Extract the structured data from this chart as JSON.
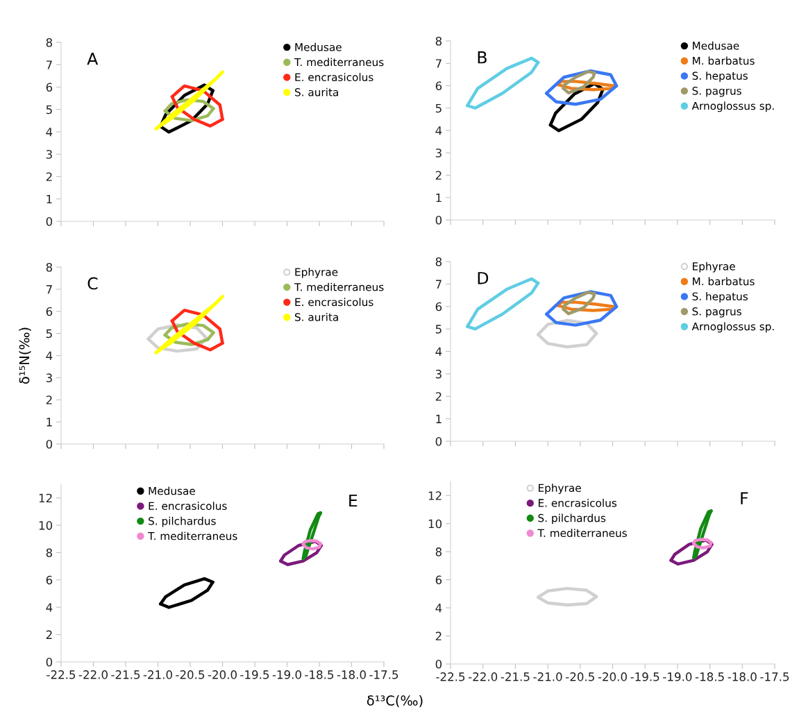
{
  "chart_data": [
    {
      "type": "line",
      "annotations": [
        "A"
      ],
      "legend": "top right",
      "xlim": [
        -22.5,
        -17.5
      ],
      "ylim": [
        0,
        8
      ],
      "tick_labels": "y",
      "xticks": [
        -22.5,
        -22,
        -21.5,
        -21,
        -20.5,
        -20,
        -19.5,
        -19,
        -18.5,
        -18,
        -17.5
      ],
      "yticks": [
        0,
        1,
        2,
        3,
        4,
        5,
        6,
        7,
        8
      ],
      "series": [
        {
          "name": "Medusae",
          "color": "#000000",
          "x": [
            -20.96,
            -20.83,
            -20.48,
            -20.23,
            -20.15
          ],
          "values": [
            4.24,
            3.99,
            4.5,
            5.25,
            5.84
          ]
        },
        {
          "color": "#000000",
          "x": [
            -20.96,
            -20.88,
            -20.59,
            -20.28,
            -20.15
          ],
          "values": [
            4.24,
            4.77,
            5.63,
            6.09,
            5.84
          ]
        },
        {
          "name": "T. mediterraneus",
          "color": "#9bbb59",
          "x": [
            -20.89,
            -20.74,
            -20.48,
            -20.23,
            -20.14
          ],
          "values": [
            4.93,
            4.61,
            4.5,
            4.72,
            5.04
          ]
        },
        {
          "color": "#9bbb59",
          "x": [
            -20.89,
            -20.79,
            -20.55,
            -20.3,
            -20.14
          ],
          "values": [
            4.93,
            5.25,
            5.43,
            5.36,
            5.04
          ]
        },
        {
          "name": "E. encrasicolus",
          "color": "#ff2a1a",
          "x": [
            -20.78,
            -20.7,
            -20.44,
            -20.19,
            -20.0
          ],
          "values": [
            5.57,
            5.09,
            4.56,
            4.26,
            4.56
          ]
        },
        {
          "color": "#ff2a1a",
          "x": [
            -20.78,
            -20.59,
            -20.3,
            -20.04,
            -20.0
          ],
          "values": [
            5.57,
            6.05,
            5.84,
            5.2,
            4.56
          ]
        },
        {
          "name": "S. aurita",
          "color": "#ffff00",
          "x": [
            -21.03,
            -20.81,
            -20.44,
            -20.12,
            -20.0
          ],
          "values": [
            4.13,
            4.56,
            5.41,
            6.32,
            6.67
          ]
        },
        {
          "color": "#ffff00",
          "x": [
            -21.03,
            -20.81,
            -20.44,
            -20.08,
            -20.0
          ],
          "values": [
            4.13,
            4.71,
            5.57,
            6.43,
            6.67
          ]
        }
      ]
    },
    {
      "type": "line",
      "annotations": [
        "B"
      ],
      "legend": "top right",
      "xlim": [
        -22.5,
        -17.5
      ],
      "ylim": [
        0,
        8
      ],
      "tick_labels": "y",
      "xticks": [
        -22.5,
        -22,
        -21.5,
        -21,
        -20.5,
        -20,
        -19.5,
        -19,
        -18.5,
        -18,
        -17.5
      ],
      "yticks": [
        0,
        1,
        2,
        3,
        4,
        5,
        6,
        7,
        8
      ],
      "series": [
        {
          "name": "Medusae",
          "color": "#000000",
          "x": [
            -20.96,
            -20.83,
            -20.48,
            -20.23,
            -20.15
          ],
          "values": [
            4.24,
            3.99,
            4.5,
            5.25,
            5.84
          ]
        },
        {
          "color": "#000000",
          "x": [
            -20.96,
            -20.88,
            -20.59,
            -20.28,
            -20.15
          ],
          "values": [
            4.24,
            4.77,
            5.63,
            6.09,
            5.84
          ]
        },
        {
          "name": "M. barbatus",
          "color": "#ed7d1a",
          "x": [
            -20.85,
            -20.64,
            -20.3,
            -20.0,
            -19.98
          ],
          "values": [
            6.05,
            5.88,
            5.82,
            5.88,
            5.99
          ]
        },
        {
          "color": "#ed7d1a",
          "x": [
            -20.85,
            -20.79,
            -20.57,
            -20.26,
            -19.98
          ],
          "values": [
            6.05,
            6.19,
            6.19,
            6.1,
            5.99
          ]
        },
        {
          "name": "S. hepatus",
          "color": "#3a78f2",
          "x": [
            -21.02,
            -20.87,
            -20.57,
            -20.19,
            -19.94
          ],
          "values": [
            5.66,
            5.28,
            5.17,
            5.39,
            5.99
          ]
        },
        {
          "color": "#3a78f2",
          "x": [
            -21.02,
            -20.75,
            -20.34,
            -20.03,
            -19.94
          ],
          "values": [
            5.66,
            6.38,
            6.66,
            6.49,
            5.99
          ]
        },
        {
          "name": "S. pagrus",
          "color": "#a09a6a",
          "x": [
            -20.76,
            -20.68,
            -20.45,
            -20.3,
            -20.28
          ],
          "values": [
            5.88,
            5.68,
            5.94,
            6.38,
            6.57
          ]
        },
        {
          "color": "#a09a6a",
          "x": [
            -20.76,
            -20.74,
            -20.57,
            -20.38,
            -20.28
          ],
          "values": [
            5.88,
            6.05,
            6.38,
            6.63,
            6.57
          ]
        },
        {
          "name": "Arnoglossus sp.",
          "color": "#5fcde4",
          "x": [
            -22.24,
            -22.12,
            -21.7,
            -21.25,
            -21.15
          ],
          "values": [
            5.11,
            5.0,
            5.66,
            6.6,
            7.04
          ]
        },
        {
          "color": "#5fcde4",
          "x": [
            -22.24,
            -22.08,
            -21.63,
            -21.25,
            -21.15
          ],
          "values": [
            5.11,
            5.88,
            6.77,
            7.23,
            7.04
          ]
        }
      ]
    },
    {
      "type": "line",
      "annotations": [
        "C"
      ],
      "ylabel": "δ¹⁵N(‰)",
      "legend": "top right",
      "xlim": [
        -22.5,
        -17.5
      ],
      "ylim": [
        0,
        8
      ],
      "tick_labels": "y",
      "xticks": [
        -22.5,
        -22,
        -21.5,
        -21,
        -20.5,
        -20,
        -19.5,
        -19,
        -18.5,
        -18,
        -17.5
      ],
      "yticks": [
        0,
        1,
        2,
        3,
        4,
        5,
        6,
        7,
        8
      ],
      "series": [
        {
          "name": "Ephyrae",
          "color": "#d0d0d0",
          "x": [
            -21.15,
            -21.0,
            -20.7,
            -20.4,
            -20.25
          ],
          "values": [
            4.75,
            4.35,
            4.2,
            4.3,
            4.8
          ]
        },
        {
          "color": "#d0d0d0",
          "x": [
            -21.15,
            -21.0,
            -20.7,
            -20.4,
            -20.25
          ],
          "values": [
            4.75,
            5.2,
            5.38,
            5.25,
            4.8
          ]
        },
        {
          "name": "T. mediterraneus",
          "color": "#9bbb59",
          "x": [
            -20.89,
            -20.74,
            -20.48,
            -20.23,
            -20.14
          ],
          "values": [
            4.93,
            4.61,
            4.5,
            4.72,
            5.04
          ]
        },
        {
          "color": "#9bbb59",
          "x": [
            -20.89,
            -20.79,
            -20.55,
            -20.3,
            -20.14
          ],
          "values": [
            4.93,
            5.25,
            5.43,
            5.36,
            5.04
          ]
        },
        {
          "name": "E. encrasicolus",
          "color": "#ff2a1a",
          "x": [
            -20.78,
            -20.7,
            -20.44,
            -20.19,
            -20.0
          ],
          "values": [
            5.57,
            5.09,
            4.56,
            4.26,
            4.56
          ]
        },
        {
          "color": "#ff2a1a",
          "x": [
            -20.78,
            -20.59,
            -20.3,
            -20.04,
            -20.0
          ],
          "values": [
            5.57,
            6.05,
            5.84,
            5.2,
            4.56
          ]
        },
        {
          "name": "S. aurita",
          "color": "#ffff00",
          "x": [
            -21.03,
            -20.81,
            -20.44,
            -20.12,
            -20.0
          ],
          "values": [
            4.13,
            4.56,
            5.41,
            6.32,
            6.67
          ]
        },
        {
          "color": "#ffff00",
          "x": [
            -21.03,
            -20.81,
            -20.44,
            -20.08,
            -20.0
          ],
          "values": [
            4.13,
            4.71,
            5.57,
            6.43,
            6.67
          ]
        }
      ]
    },
    {
      "type": "line",
      "annotations": [
        "D"
      ],
      "legend": "top right",
      "xlim": [
        -22.5,
        -17.5
      ],
      "ylim": [
        0,
        8
      ],
      "tick_labels": "y",
      "xticks": [
        -22.5,
        -22,
        -21.5,
        -21,
        -20.5,
        -20,
        -19.5,
        -19,
        -18.5,
        -18,
        -17.5
      ],
      "yticks": [
        0,
        1,
        2,
        3,
        4,
        5,
        6,
        7,
        8
      ],
      "series": [
        {
          "name": "Ephyrae",
          "color": "#d0d0d0",
          "x": [
            -21.15,
            -21.0,
            -20.7,
            -20.4,
            -20.25
          ],
          "values": [
            4.75,
            4.35,
            4.2,
            4.3,
            4.8
          ]
        },
        {
          "color": "#d0d0d0",
          "x": [
            -21.15,
            -21.0,
            -20.7,
            -20.4,
            -20.25
          ],
          "values": [
            4.75,
            5.2,
            5.38,
            5.25,
            4.8
          ]
        },
        {
          "name": "M. barbatus",
          "color": "#ed7d1a",
          "x": [
            -20.85,
            -20.64,
            -20.3,
            -20.0,
            -19.98
          ],
          "values": [
            6.05,
            5.88,
            5.82,
            5.88,
            5.99
          ]
        },
        {
          "color": "#ed7d1a",
          "x": [
            -20.85,
            -20.79,
            -20.57,
            -20.26,
            -19.98
          ],
          "values": [
            6.05,
            6.19,
            6.19,
            6.1,
            5.99
          ]
        },
        {
          "name": "S. hepatus",
          "color": "#3a78f2",
          "x": [
            -21.02,
            -20.87,
            -20.57,
            -20.19,
            -19.94
          ],
          "values": [
            5.66,
            5.28,
            5.17,
            5.39,
            5.99
          ]
        },
        {
          "color": "#3a78f2",
          "x": [
            -21.02,
            -20.75,
            -20.34,
            -20.03,
            -19.94
          ],
          "values": [
            5.66,
            6.38,
            6.66,
            6.49,
            5.99
          ]
        },
        {
          "name": "S. pagrus",
          "color": "#a09a6a",
          "x": [
            -20.76,
            -20.68,
            -20.45,
            -20.3,
            -20.28
          ],
          "values": [
            5.88,
            5.68,
            5.94,
            6.38,
            6.57
          ]
        },
        {
          "color": "#a09a6a",
          "x": [
            -20.76,
            -20.74,
            -20.57,
            -20.38,
            -20.28
          ],
          "values": [
            5.88,
            6.05,
            6.38,
            6.63,
            6.57
          ]
        },
        {
          "name": "Arnoglossus sp.",
          "color": "#5fcde4",
          "x": [
            -22.24,
            -22.12,
            -21.7,
            -21.25,
            -21.15
          ],
          "values": [
            5.11,
            5.0,
            5.66,
            6.6,
            7.04
          ]
        },
        {
          "color": "#5fcde4",
          "x": [
            -22.24,
            -22.08,
            -21.63,
            -21.25,
            -21.15
          ],
          "values": [
            5.11,
            5.88,
            6.77,
            7.23,
            7.04
          ]
        }
      ]
    },
    {
      "type": "line",
      "annotations": [
        "E"
      ],
      "xlabel": "δ¹³C(‰)",
      "legend": "top left",
      "xlim": [
        -22.5,
        -17.5
      ],
      "ylim": [
        0,
        13
      ],
      "xticks": [
        -22.5,
        {
          "value": -22,
          "label": "-22.0"
        },
        -21.5,
        {
          "value": -21,
          "label": "-21.0"
        },
        -20.5,
        {
          "value": -20,
          "label": "-20.0"
        },
        -19.5,
        {
          "value": -19,
          "label": "-19.0"
        },
        -18.5,
        {
          "value": -18,
          "label": "-18.0"
        },
        -17.5
      ],
      "yticks": [
        0,
        2,
        4,
        6,
        8,
        10,
        12
      ],
      "series": [
        {
          "name": "Medusae",
          "color": "#000000",
          "x": [
            -20.96,
            -20.83,
            -20.48,
            -20.23,
            -20.15
          ],
          "values": [
            4.24,
            3.99,
            4.5,
            5.25,
            5.84
          ]
        },
        {
          "color": "#000000",
          "x": [
            -20.96,
            -20.88,
            -20.59,
            -20.28,
            -20.15
          ],
          "values": [
            4.24,
            4.77,
            5.63,
            6.09,
            5.84
          ]
        },
        {
          "name": "E. encrasicolus",
          "color": "#7b1a7b",
          "x": [
            -19.1,
            -18.99,
            -18.75,
            -18.54,
            -18.47
          ],
          "values": [
            7.38,
            7.12,
            7.38,
            7.99,
            8.52
          ]
        },
        {
          "color": "#7b1a7b",
          "x": [
            -19.1,
            -19.04,
            -18.82,
            -18.56,
            -18.47
          ],
          "values": [
            7.38,
            7.82,
            8.52,
            8.82,
            8.52
          ]
        },
        {
          "name": "S. pilchardus",
          "color": "#138a13",
          "x": [
            -18.75,
            -18.71,
            -18.6,
            -18.51,
            -18.48
          ],
          "values": [
            7.56,
            7.73,
            9.31,
            10.62,
            10.91
          ]
        },
        {
          "color": "#138a13",
          "x": [
            -18.75,
            -18.73,
            -18.64,
            -18.52,
            -18.48
          ],
          "values": [
            7.56,
            8.08,
            9.66,
            10.85,
            10.91
          ]
        },
        {
          "name": "T. mediterraneus",
          "color": "#f08ad0",
          "x": [
            -18.75,
            -18.7,
            -18.6,
            -18.5,
            -18.48
          ],
          "values": [
            8.6,
            8.35,
            8.27,
            8.4,
            8.65
          ]
        },
        {
          "color": "#f08ad0",
          "x": [
            -18.75,
            -18.73,
            -18.65,
            -18.55,
            -18.48
          ],
          "values": [
            8.6,
            8.78,
            8.87,
            8.85,
            8.65
          ]
        }
      ]
    },
    {
      "type": "line",
      "annotations": [
        "F"
      ],
      "legend": "top left",
      "xlim": [
        -22.5,
        -17.5
      ],
      "ylim": [
        0,
        13
      ],
      "xticks": [
        -22.5,
        {
          "value": -22,
          "label": "-22.0"
        },
        -21.5,
        {
          "value": -21,
          "label": "-21.0"
        },
        -20.5,
        {
          "value": -20,
          "label": "-20.0"
        },
        -19.5,
        {
          "value": -19,
          "label": "-19.0"
        },
        -18.5,
        {
          "value": -18,
          "label": "-18.0"
        },
        -17.5
      ],
      "yticks": [
        0,
        2,
        4,
        6,
        8,
        10,
        12
      ],
      "series": [
        {
          "name": "Ephyrae",
          "color": "#d0d0d0",
          "x": [
            -21.15,
            -21.0,
            -20.7,
            -20.4,
            -20.25
          ],
          "values": [
            4.75,
            4.35,
            4.2,
            4.3,
            4.8
          ]
        },
        {
          "color": "#d0d0d0",
          "x": [
            -21.15,
            -21.0,
            -20.7,
            -20.4,
            -20.25
          ],
          "values": [
            4.75,
            5.2,
            5.38,
            5.25,
            4.8
          ]
        },
        {
          "name": "E. encrasicolus",
          "color": "#7b1a7b",
          "x": [
            -19.1,
            -18.99,
            -18.75,
            -18.54,
            -18.47
          ],
          "values": [
            7.38,
            7.12,
            7.38,
            7.99,
            8.52
          ]
        },
        {
          "color": "#7b1a7b",
          "x": [
            -19.1,
            -19.04,
            -18.82,
            -18.56,
            -18.47
          ],
          "values": [
            7.38,
            7.82,
            8.52,
            8.82,
            8.52
          ]
        },
        {
          "name": "S. pilchardus",
          "color": "#138a13",
          "x": [
            -18.75,
            -18.71,
            -18.6,
            -18.51,
            -18.48
          ],
          "values": [
            7.56,
            7.73,
            9.31,
            10.62,
            10.91
          ]
        },
        {
          "color": "#138a13",
          "x": [
            -18.75,
            -18.73,
            -18.64,
            -18.52,
            -18.48
          ],
          "values": [
            7.56,
            8.08,
            9.66,
            10.85,
            10.91
          ]
        },
        {
          "name": "T. mediterraneus",
          "color": "#f08ad0",
          "x": [
            -18.75,
            -18.7,
            -18.6,
            -18.5,
            -18.48
          ],
          "values": [
            8.6,
            8.35,
            8.27,
            8.4,
            8.65
          ]
        },
        {
          "color": "#f08ad0",
          "x": [
            -18.75,
            -18.73,
            -18.65,
            -18.55,
            -18.48
          ],
          "values": [
            8.6,
            8.78,
            8.87,
            8.85,
            8.65
          ]
        }
      ]
    }
  ]
}
